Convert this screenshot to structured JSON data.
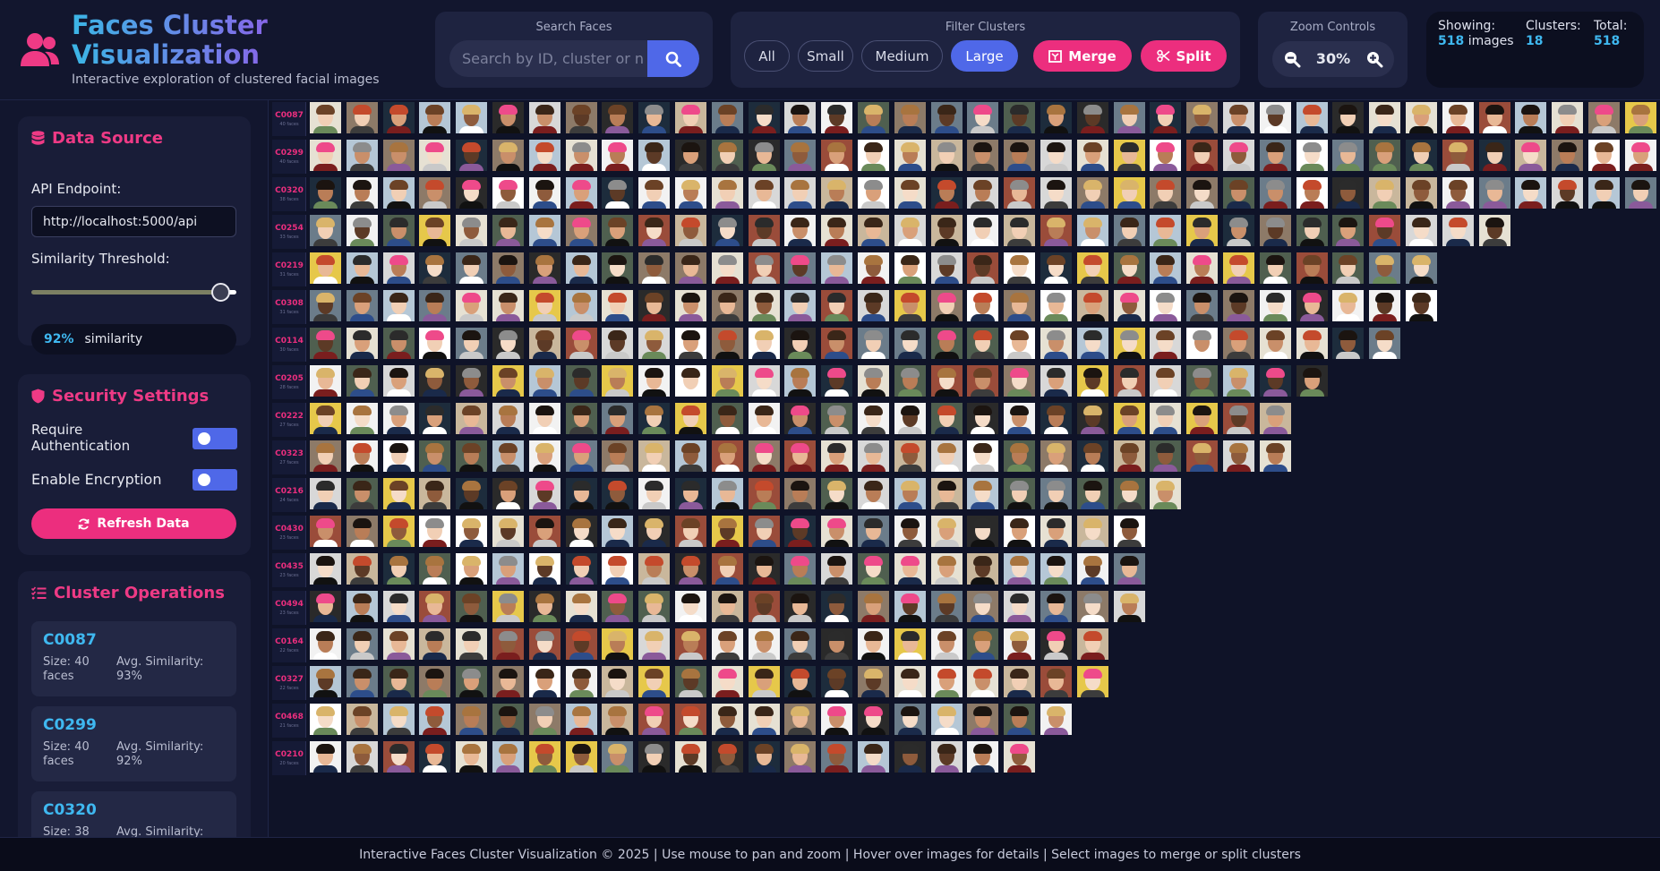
{
  "app": {
    "title": "Faces Cluster Visualization",
    "subtitle": "Interactive exploration of clustered facial images"
  },
  "search": {
    "title": "Search Faces",
    "placeholder": "Search by ID, cluster or n"
  },
  "filter": {
    "title": "Filter Clusters",
    "buttons": [
      {
        "label": "All",
        "active": false
      },
      {
        "label": "Small",
        "active": false
      },
      {
        "label": "Medium",
        "active": false
      },
      {
        "label": "Large",
        "active": true
      }
    ],
    "merge_label": "Merge",
    "split_label": "Split"
  },
  "zoom": {
    "title": "Zoom Controls",
    "level": "30%"
  },
  "stats": {
    "showing_label": "Showing:",
    "showing_value": "518",
    "showing_unit": "images",
    "clusters_label": "Clusters:",
    "clusters_value": "18",
    "total_label": "Total:",
    "total_value": "518"
  },
  "data_source": {
    "title": "Data Source",
    "api_label": "API Endpoint:",
    "api_value": "http://localhost:5000/api",
    "threshold_label": "Similarity Threshold:",
    "threshold_fraction": 0.92,
    "similarity_pct": "92%",
    "similarity_word": "similarity"
  },
  "security": {
    "title": "Security Settings",
    "require_auth_label": "Require Authentication",
    "require_auth_on": true,
    "encryption_label": "Enable Encryption",
    "encryption_on": true,
    "refresh_label": "Refresh Data"
  },
  "operations": {
    "title": "Cluster Operations",
    "size_prefix": "Size:",
    "faces_word": "faces",
    "sim_prefix": "Avg. Similarity:",
    "items": [
      {
        "id": "C0087",
        "size": "40",
        "similarity": "93%"
      },
      {
        "id": "C0299",
        "size": "40",
        "similarity": "92%"
      },
      {
        "id": "C0320",
        "size": "38",
        "similarity": ""
      }
    ]
  },
  "clusters": [
    {
      "id": "C0087",
      "faces": 40,
      "count_text": "40 faces"
    },
    {
      "id": "C0299",
      "faces": 40,
      "count_text": "40 faces"
    },
    {
      "id": "C0320",
      "faces": 38,
      "count_text": "38 faces"
    },
    {
      "id": "C0254",
      "faces": 33,
      "count_text": "33 faces"
    },
    {
      "id": "C0219",
      "faces": 31,
      "count_text": "31 faces"
    },
    {
      "id": "C0308",
      "faces": 31,
      "count_text": "31 faces"
    },
    {
      "id": "C0114",
      "faces": 30,
      "count_text": "30 faces"
    },
    {
      "id": "C0205",
      "faces": 28,
      "count_text": "28 faces"
    },
    {
      "id": "C0222",
      "faces": 27,
      "count_text": "27 faces"
    },
    {
      "id": "C0323",
      "faces": 27,
      "count_text": "27 faces"
    },
    {
      "id": "C0216",
      "faces": 24,
      "count_text": "24 faces"
    },
    {
      "id": "C0430",
      "faces": 23,
      "count_text": "23 faces"
    },
    {
      "id": "C0435",
      "faces": 23,
      "count_text": "23 faces"
    },
    {
      "id": "C0494",
      "faces": 23,
      "count_text": "23 faces"
    },
    {
      "id": "C0164",
      "faces": 22,
      "count_text": "22 faces"
    },
    {
      "id": "C0327",
      "faces": 22,
      "count_text": "22 faces"
    },
    {
      "id": "C0468",
      "faces": 21,
      "count_text": "21 faces"
    },
    {
      "id": "C0210",
      "faces": 20,
      "count_text": "20 faces"
    }
  ],
  "colors": {
    "accent_pink": "#ec2e7e",
    "accent_blue": "#4f68e8",
    "accent_cyan": "#3fb8f0"
  },
  "footer": {
    "text": "Interactive Faces Cluster Visualization © 2025 | Use mouse to pan and zoom | Hover over images for details | Select images to merge or split clusters"
  }
}
